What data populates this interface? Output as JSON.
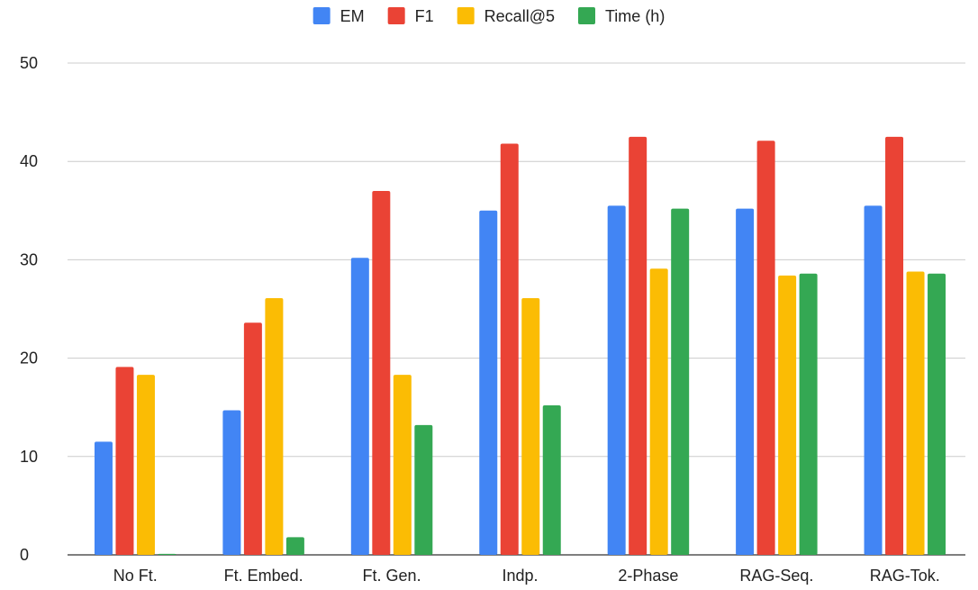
{
  "chart_data": {
    "type": "bar",
    "title": "",
    "xlabel": "",
    "ylabel": "",
    "ylim": [
      0,
      50
    ],
    "yticks": [
      0,
      10,
      20,
      30,
      40,
      50
    ],
    "grid": true,
    "legend_position": "top-center",
    "categories": [
      "No Ft.",
      "Ft. Embed.",
      "Ft. Gen.",
      "Indp.",
      "2-Phase",
      "RAG-Seq.",
      "RAG-Tok."
    ],
    "series": [
      {
        "name": "EM",
        "color": "#4285f4",
        "values": [
          11.5,
          14.7,
          30.2,
          35.0,
          35.5,
          35.2,
          35.5
        ]
      },
      {
        "name": "F1",
        "color": "#ea4335",
        "values": [
          19.1,
          23.6,
          37.0,
          41.8,
          42.5,
          42.1,
          42.5
        ]
      },
      {
        "name": "Recall@5",
        "color": "#fbbc04",
        "values": [
          18.3,
          26.1,
          18.3,
          26.1,
          29.1,
          28.4,
          28.8
        ]
      },
      {
        "name": "Time (h)",
        "color": "#34a853",
        "values": [
          0.1,
          1.8,
          13.2,
          15.2,
          35.2,
          28.6,
          28.6
        ]
      }
    ]
  }
}
